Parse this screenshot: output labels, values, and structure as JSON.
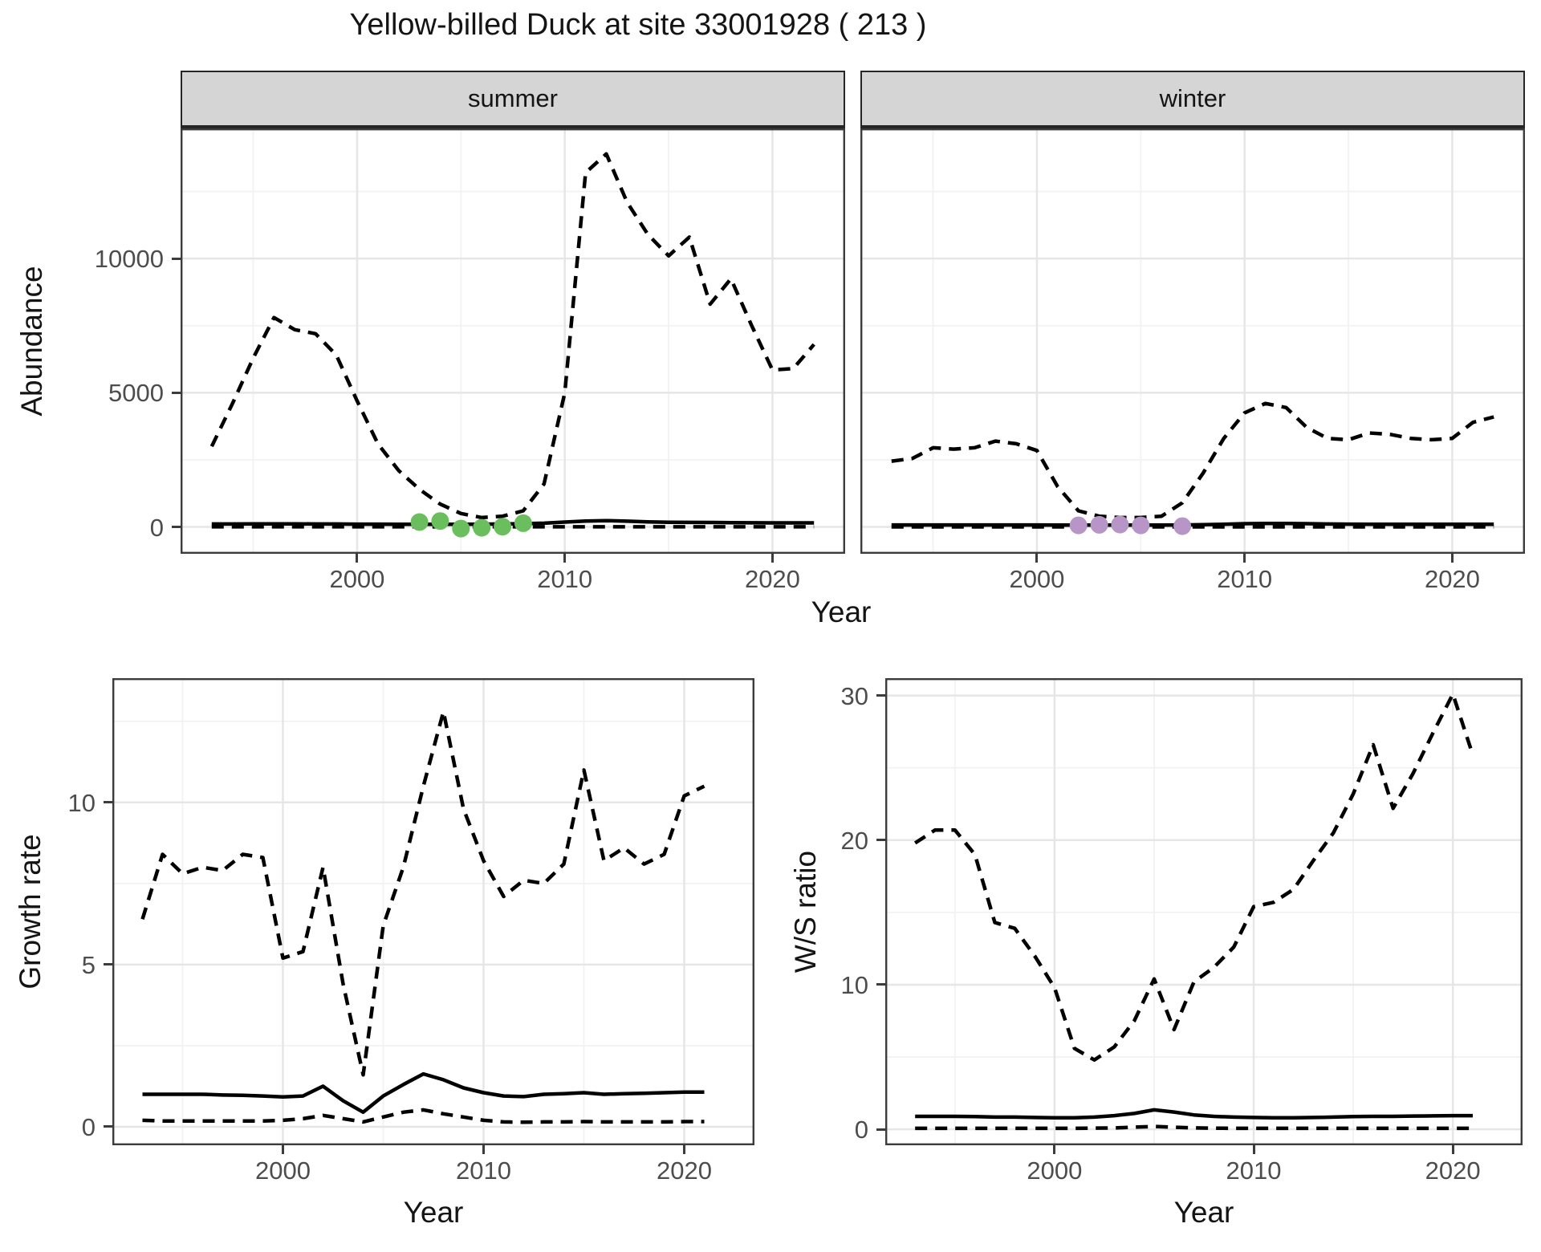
{
  "title": "Yellow-billed Duck at site 33001928 ( 213 )",
  "facet_labels": {
    "summer": "summer",
    "winter": "winter"
  },
  "axis_titles": {
    "top_y": "Abundance",
    "top_x": "Year",
    "bottom_left_y": "Growth rate",
    "bottom_left_x": "Year",
    "bottom_right_y": "W/S ratio",
    "bottom_right_x": "Year"
  },
  "colors": {
    "strip_bg": "#d5d5d5",
    "strip_border": "#262626",
    "panel_border": "#3c3c3c",
    "grid_major": "#e6e6e6",
    "grid_minor": "#f2f2f2",
    "tick_label": "#4d4d4d",
    "text": "#141414",
    "line": "#000000",
    "summer_points": "#6abe5d",
    "winter_points": "#b795c7"
  },
  "chart_data": [
    {
      "id": "abundance-summer",
      "type": "line",
      "facet": "summer",
      "xlabel": "Year",
      "ylabel": "Abundance",
      "xlim": [
        1991.5,
        2023.5
      ],
      "ylim": [
        -1000,
        14850
      ],
      "xticks": [
        2000,
        2010,
        2020
      ],
      "xticks_minor": [
        1995,
        2005,
        2015
      ],
      "yticks": [
        0,
        5000,
        10000
      ],
      "yticks_minor": [
        2500,
        7500,
        12500
      ],
      "x": [
        1993,
        1994,
        1995,
        1996,
        1997,
        1998,
        1999,
        2000,
        2001,
        2002,
        2003,
        2004,
        2005,
        2006,
        2007,
        2008,
        2009,
        2010,
        2011,
        2012,
        2013,
        2014,
        2015,
        2016,
        2017,
        2018,
        2019,
        2020,
        2021,
        2022
      ],
      "series": [
        {
          "name": "upper-ci",
          "linetype": "dashed",
          "values": [
            3000,
            4600,
            6300,
            7800,
            7350,
            7200,
            6400,
            4700,
            3100,
            2100,
            1400,
            850,
            500,
            350,
            400,
            600,
            1600,
            5000,
            13200,
            13900,
            12100,
            10900,
            10100,
            10800,
            8300,
            9250,
            7500,
            5850,
            5900,
            6800
          ]
        },
        {
          "name": "fitted",
          "linetype": "solid",
          "values": [
            110,
            110,
            115,
            115,
            115,
            110,
            110,
            105,
            105,
            100,
            100,
            100,
            100,
            105,
            110,
            120,
            140,
            180,
            220,
            235,
            215,
            190,
            175,
            170,
            165,
            160,
            155,
            150,
            150,
            150
          ]
        },
        {
          "name": "lower-ci",
          "linetype": "dashed",
          "values": [
            5,
            5,
            5,
            5,
            5,
            5,
            5,
            5,
            5,
            5,
            5,
            5,
            5,
            5,
            5,
            5,
            5,
            5,
            5,
            5,
            5,
            5,
            5,
            5,
            5,
            5,
            5,
            5,
            5,
            5
          ]
        }
      ],
      "points": {
        "name": "observed-counts-summer",
        "color_key": "summer_points",
        "x": [
          2003,
          2004,
          2005,
          2006,
          2007,
          2008
        ],
        "y": [
          180,
          220,
          -60,
          -30,
          10,
          140
        ]
      }
    },
    {
      "id": "abundance-winter",
      "type": "line",
      "facet": "winter",
      "xlabel": "Year",
      "ylabel": "Abundance",
      "xlim": [
        1991.5,
        2023.5
      ],
      "ylim": [
        -1000,
        14850
      ],
      "xticks": [
        2000,
        2010,
        2020
      ],
      "xticks_minor": [
        1995,
        2005,
        2015
      ],
      "yticks": [
        0,
        5000,
        10000
      ],
      "yticks_minor": [
        2500,
        7500,
        12500
      ],
      "x": [
        1993,
        1994,
        1995,
        1996,
        1997,
        1998,
        1999,
        2000,
        2001,
        2002,
        2003,
        2004,
        2005,
        2006,
        2007,
        2008,
        2009,
        2010,
        2011,
        2012,
        2013,
        2014,
        2015,
        2016,
        2017,
        2018,
        2019,
        2020,
        2021,
        2022
      ],
      "series": [
        {
          "name": "upper-ci",
          "linetype": "dashed",
          "values": [
            2450,
            2550,
            2950,
            2900,
            2950,
            3200,
            3100,
            2850,
            1500,
            600,
            400,
            350,
            350,
            400,
            900,
            2000,
            3300,
            4250,
            4600,
            4450,
            3700,
            3300,
            3250,
            3500,
            3450,
            3300,
            3250,
            3300,
            3900,
            4100
          ]
        },
        {
          "name": "fitted",
          "linetype": "solid",
          "values": [
            75,
            75,
            75,
            75,
            75,
            75,
            75,
            75,
            70,
            70,
            70,
            70,
            70,
            70,
            75,
            85,
            100,
            120,
            130,
            130,
            120,
            110,
            105,
            100,
            100,
            100,
            100,
            100,
            100,
            100
          ]
        },
        {
          "name": "lower-ci",
          "linetype": "dashed",
          "values": [
            3,
            3,
            3,
            3,
            3,
            3,
            3,
            3,
            3,
            3,
            3,
            3,
            3,
            3,
            3,
            3,
            3,
            3,
            3,
            3,
            3,
            3,
            3,
            3,
            3,
            3,
            3,
            3,
            3,
            3
          ]
        }
      ],
      "points": {
        "name": "observed-counts-winter",
        "color_key": "winter_points",
        "x": [
          2002,
          2003,
          2004,
          2005,
          2007
        ],
        "y": [
          60,
          80,
          90,
          60,
          30
        ]
      }
    },
    {
      "id": "growth-rate",
      "type": "line",
      "facet": null,
      "xlabel": "Year",
      "ylabel": "Growth rate",
      "xlim": [
        1991.5,
        2023.5
      ],
      "ylim": [
        -0.57,
        13.83
      ],
      "xticks": [
        2000,
        2010,
        2020
      ],
      "xticks_minor": [
        1995,
        2005,
        2015
      ],
      "yticks": [
        0,
        5,
        10
      ],
      "yticks_minor": [
        2.5,
        7.5,
        12.5
      ],
      "x": [
        1993,
        1994,
        1995,
        1996,
        1997,
        1998,
        1999,
        2000,
        2001,
        2002,
        2003,
        2004,
        2005,
        2006,
        2007,
        2008,
        2009,
        2010,
        2011,
        2012,
        2013,
        2014,
        2015,
        2016,
        2017,
        2018,
        2019,
        2020,
        2021
      ],
      "series": [
        {
          "name": "upper-ci",
          "linetype": "dashed",
          "values": [
            6.4,
            8.4,
            7.8,
            8.0,
            7.9,
            8.4,
            8.3,
            5.2,
            5.4,
            8.0,
            4.4,
            1.6,
            6.2,
            8.0,
            10.5,
            12.8,
            9.8,
            8.2,
            7.1,
            7.6,
            7.5,
            8.1,
            11.0,
            8.2,
            8.6,
            8.1,
            8.4,
            10.2,
            10.5
          ]
        },
        {
          "name": "fitted",
          "linetype": "solid",
          "values": [
            1.0,
            1.0,
            1.0,
            1.0,
            0.98,
            0.97,
            0.95,
            0.92,
            0.95,
            1.25,
            0.8,
            0.45,
            0.95,
            1.3,
            1.63,
            1.45,
            1.2,
            1.05,
            0.95,
            0.93,
            1.0,
            1.02,
            1.05,
            1.0,
            1.02,
            1.03,
            1.05,
            1.07,
            1.07
          ]
        },
        {
          "name": "lower-ci",
          "linetype": "dashed",
          "values": [
            0.2,
            0.18,
            0.18,
            0.18,
            0.18,
            0.18,
            0.18,
            0.2,
            0.25,
            0.35,
            0.25,
            0.15,
            0.3,
            0.45,
            0.52,
            0.4,
            0.3,
            0.2,
            0.15,
            0.14,
            0.15,
            0.15,
            0.16,
            0.15,
            0.15,
            0.15,
            0.15,
            0.16,
            0.16
          ]
        }
      ],
      "points": null
    },
    {
      "id": "ws-ratio",
      "type": "line",
      "facet": null,
      "xlabel": "Year",
      "ylabel": "W/S ratio",
      "xlim": [
        1991.5,
        2023.5
      ],
      "ylim": [
        -1.1,
        31.2
      ],
      "xticks": [
        2000,
        2010,
        2020
      ],
      "xticks_minor": [
        1995,
        2005,
        2015
      ],
      "yticks": [
        0,
        10,
        20,
        30
      ],
      "yticks_minor": [
        5,
        15,
        25
      ],
      "x": [
        1993,
        1994,
        1995,
        1996,
        1997,
        1998,
        1999,
        2000,
        2001,
        2002,
        2003,
        2004,
        2005,
        2006,
        2007,
        2008,
        2009,
        2010,
        2011,
        2012,
        2013,
        2014,
        2015,
        2016,
        2017,
        2018,
        2019,
        2020,
        2021
      ],
      "series": [
        {
          "name": "upper-ci",
          "linetype": "dashed",
          "values": [
            19.8,
            20.7,
            20.7,
            19.0,
            14.3,
            13.9,
            12.0,
            9.8,
            5.6,
            4.8,
            5.7,
            7.5,
            10.4,
            6.9,
            10.2,
            11.2,
            12.6,
            15.4,
            15.7,
            16.6,
            18.6,
            20.5,
            23.2,
            26.6,
            22.2,
            24.6,
            27.4,
            30.1,
            25.9
          ]
        },
        {
          "name": "fitted",
          "linetype": "solid",
          "values": [
            0.9,
            0.9,
            0.9,
            0.88,
            0.85,
            0.85,
            0.82,
            0.8,
            0.8,
            0.85,
            0.95,
            1.1,
            1.35,
            1.2,
            1.0,
            0.9,
            0.85,
            0.82,
            0.8,
            0.8,
            0.82,
            0.85,
            0.88,
            0.9,
            0.9,
            0.92,
            0.93,
            0.95,
            0.95
          ]
        },
        {
          "name": "lower-ci",
          "linetype": "dashed",
          "values": [
            0.07,
            0.07,
            0.07,
            0.07,
            0.07,
            0.07,
            0.07,
            0.07,
            0.07,
            0.08,
            0.1,
            0.15,
            0.2,
            0.15,
            0.1,
            0.08,
            0.07,
            0.07,
            0.07,
            0.07,
            0.07,
            0.07,
            0.07,
            0.07,
            0.07,
            0.07,
            0.07,
            0.07,
            0.07
          ]
        }
      ],
      "points": null
    }
  ]
}
